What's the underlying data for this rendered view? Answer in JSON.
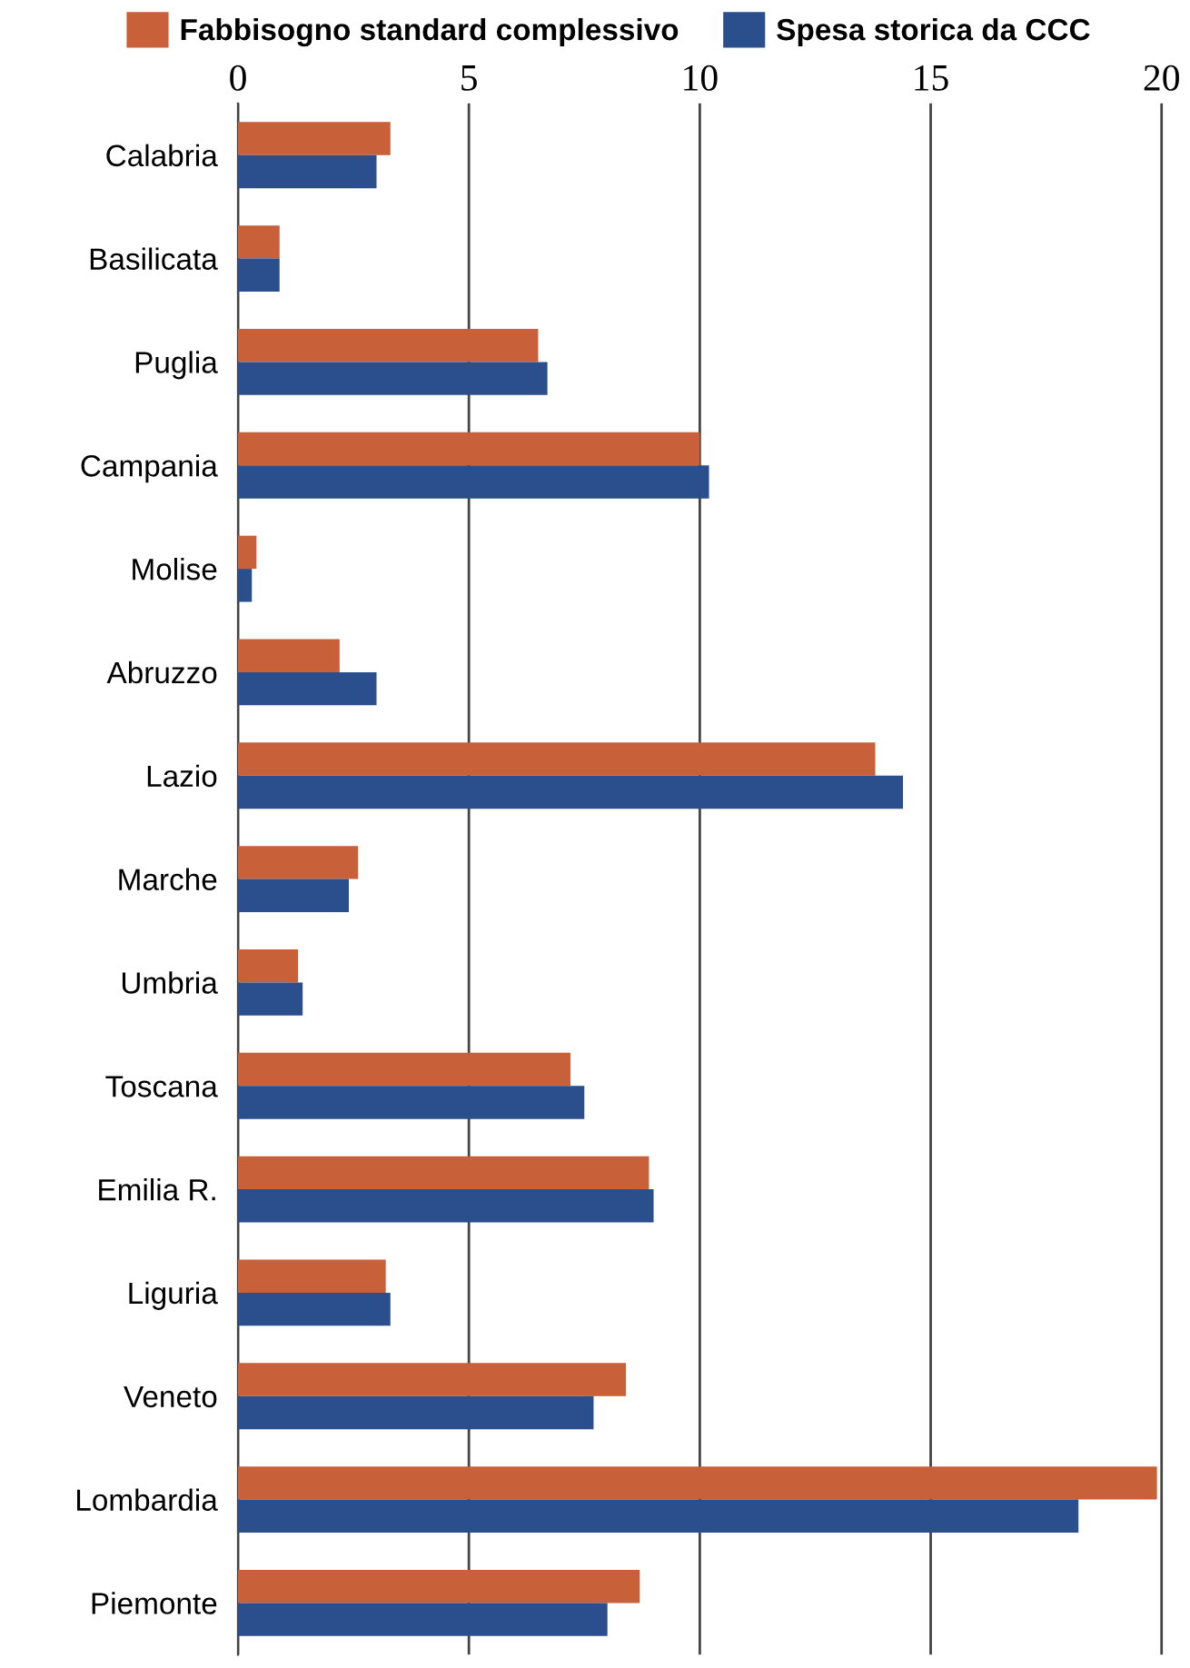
{
  "chart_data": {
    "type": "bar",
    "orientation": "horizontal",
    "categories": [
      "Calabria",
      "Basilicata",
      "Puglia",
      "Campania",
      "Molise",
      "Abruzzo",
      "Lazio",
      "Marche",
      "Umbria",
      "Toscana",
      "Emilia R.",
      "Liguria",
      "Veneto",
      "Lombardia",
      "Piemonte"
    ],
    "series": [
      {
        "name": "Fabbisogno standard complessivo",
        "color": "#c8603a",
        "values": [
          3.3,
          0.9,
          6.5,
          10.0,
          0.4,
          2.2,
          13.8,
          2.6,
          1.3,
          7.2,
          8.9,
          3.2,
          8.4,
          19.9,
          8.7
        ]
      },
      {
        "name": "Spesa storica da CCC",
        "color": "#2b4f8c",
        "values": [
          3.0,
          0.9,
          6.7,
          10.2,
          0.3,
          3.0,
          14.4,
          2.4,
          1.4,
          7.5,
          9.0,
          3.3,
          7.7,
          18.2,
          8.0
        ]
      }
    ],
    "xlim": [
      0,
      20.1
    ],
    "xticks": [
      0,
      5,
      10,
      15,
      20
    ],
    "grid": "x",
    "legend": "top"
  }
}
